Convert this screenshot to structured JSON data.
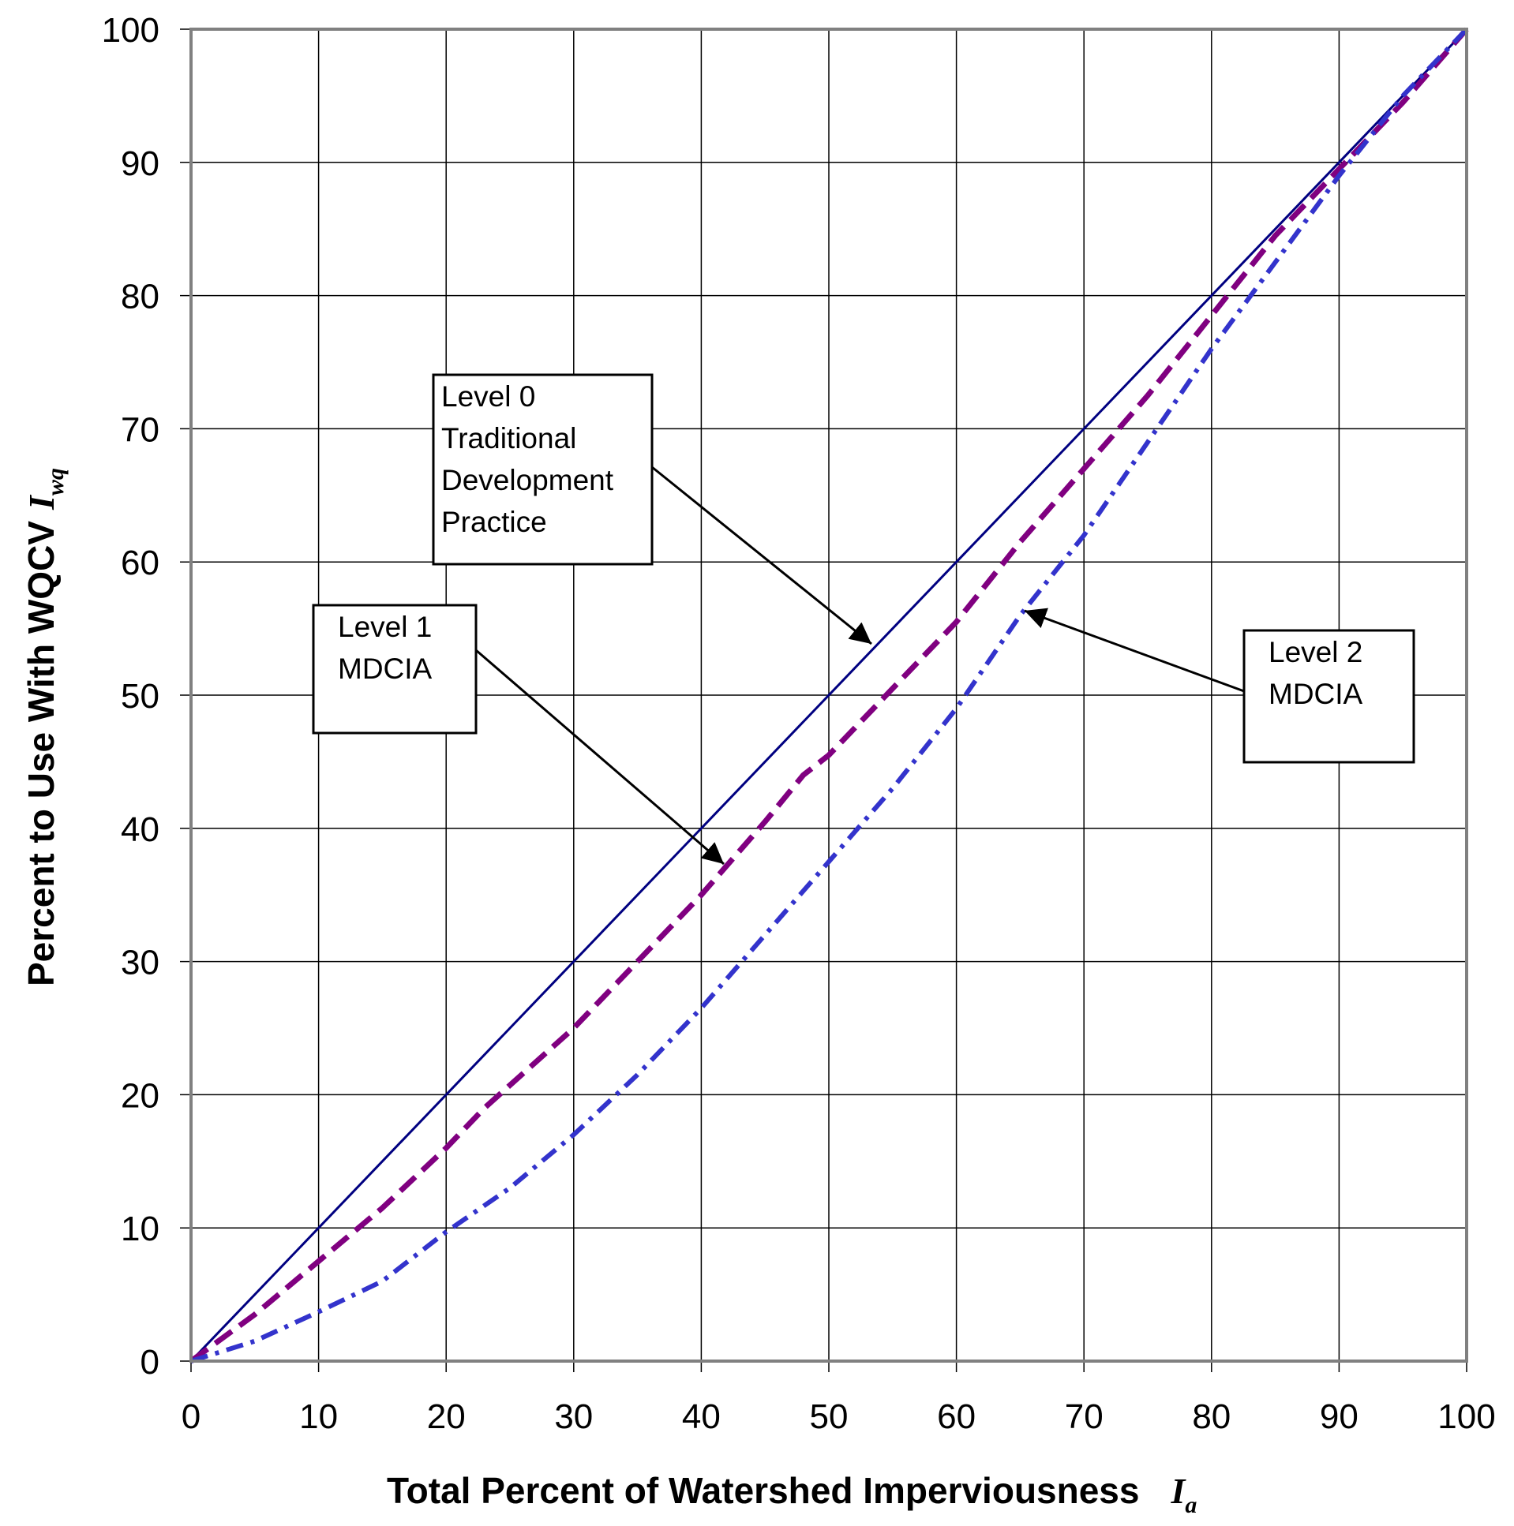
{
  "chart_data": {
    "type": "line",
    "xlabel": "Total Percent of Watershed Imperviousness",
    "xlabel_symbol": "I",
    "xlabel_subscript": "a",
    "ylabel": "Percent to Use With WQCV",
    "ylabel_symbol": "I",
    "ylabel_subscript": "wq",
    "xlim": [
      0,
      100
    ],
    "ylim": [
      0,
      100
    ],
    "xticks": [
      "0",
      "10",
      "20",
      "30",
      "40",
      "50",
      "60",
      "70",
      "80",
      "90",
      "100"
    ],
    "yticks": [
      "0",
      "10",
      "20",
      "30",
      "40",
      "50",
      "60",
      "70",
      "80",
      "90",
      "100"
    ],
    "grid": true,
    "series": [
      {
        "color": "#000080",
        "style": "solid",
        "x": [
          0,
          100
        ],
        "y": [
          0,
          100
        ]
      },
      {
        "color": "#800080",
        "style": "dashed",
        "x": [
          0,
          5,
          10,
          15,
          20,
          23,
          30,
          35,
          40,
          45,
          48,
          50,
          55,
          60,
          65,
          70,
          75,
          80,
          85,
          90,
          95,
          100
        ],
        "y": [
          0,
          3.5,
          7.5,
          11.5,
          16,
          19,
          25,
          30,
          35,
          40.5,
          44,
          45.5,
          50.5,
          55.5,
          61.5,
          67,
          72.5,
          78.5,
          84.5,
          89.5,
          94.5,
          100
        ]
      },
      {
        "color": "#3333cc",
        "style": "dash-dot",
        "x": [
          0,
          5,
          10,
          15,
          20,
          25,
          30,
          35,
          40,
          45,
          50,
          55,
          60,
          65,
          70,
          75,
          80,
          85,
          90,
          95,
          100
        ],
        "y": [
          0,
          1.5,
          3.7,
          6,
          9.7,
          13,
          17,
          21.5,
          26.5,
          32,
          37.5,
          43,
          49,
          56,
          62,
          69,
          76,
          82.5,
          89,
          95,
          100
        ]
      }
    ],
    "annotations": [
      {
        "lines": [
          "Level 0",
          "Traditional",
          "Development",
          "Practice"
        ]
      },
      {
        "lines": [
          "Level 1",
          "MDCIA"
        ]
      },
      {
        "lines": [
          "Level 2",
          "MDCIA"
        ]
      }
    ]
  }
}
